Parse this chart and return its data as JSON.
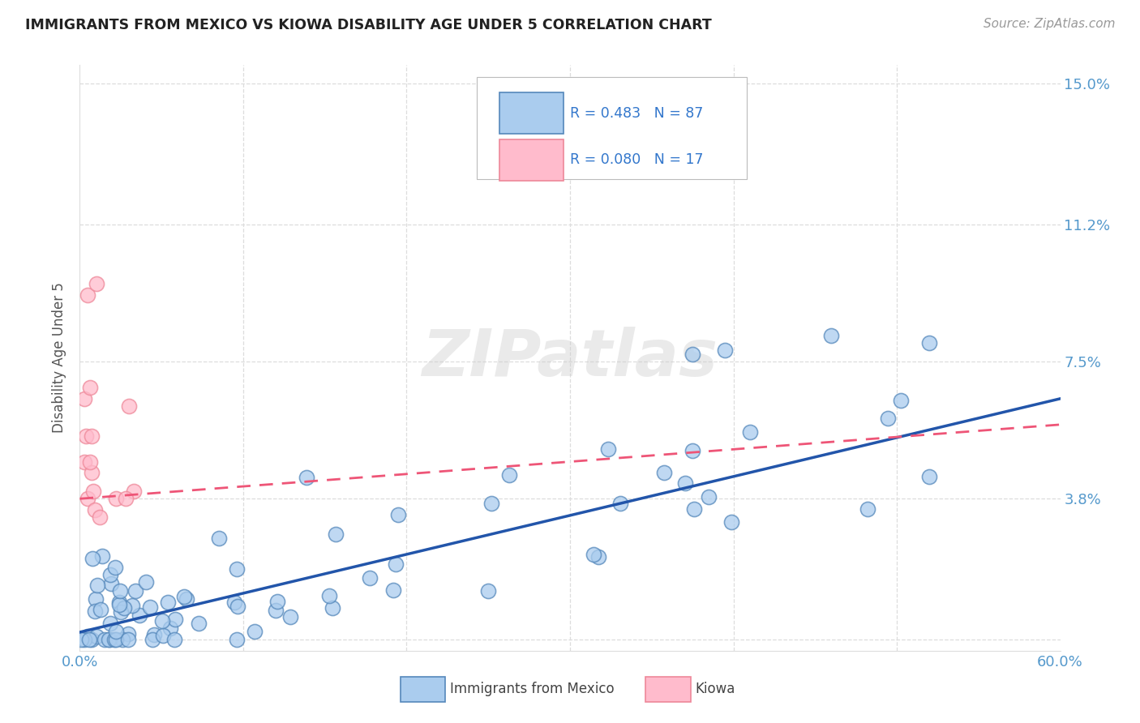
{
  "title": "IMMIGRANTS FROM MEXICO VS KIOWA DISABILITY AGE UNDER 5 CORRELATION CHART",
  "source": "Source: ZipAtlas.com",
  "ylabel": "Disability Age Under 5",
  "legend_mexico": "Immigrants from Mexico",
  "legend_kiowa": "Kiowa",
  "xlim": [
    0.0,
    0.6
  ],
  "ylim": [
    -0.003,
    0.155
  ],
  "ytick_vals": [
    0.0,
    0.038,
    0.075,
    0.112,
    0.15
  ],
  "ytick_labels": [
    "",
    "3.8%",
    "7.5%",
    "11.2%",
    "15.0%"
  ],
  "xtick_vals": [
    0.0,
    0.1,
    0.2,
    0.3,
    0.4,
    0.5,
    0.6
  ],
  "xtick_labels": [
    "0.0%",
    "",
    "",
    "",
    "",
    "",
    "60.0%"
  ],
  "blue_face": "#AACCEE",
  "blue_edge": "#5588BB",
  "pink_face": "#FFBBCC",
  "pink_edge": "#EE8899",
  "line_blue_color": "#2255AA",
  "line_pink_color": "#EE5577",
  "grid_color": "#DDDDDD",
  "tick_color": "#5599CC",
  "legend_text_color": "#333333",
  "legend_num_color": "#3377CC",
  "watermark_color": "#CCCCCC",
  "mexico_line_x": [
    0.0,
    0.6
  ],
  "mexico_line_y": [
    0.002,
    0.065
  ],
  "kiowa_line_x": [
    0.0,
    0.6
  ],
  "kiowa_line_y": [
    0.038,
    0.058
  ]
}
